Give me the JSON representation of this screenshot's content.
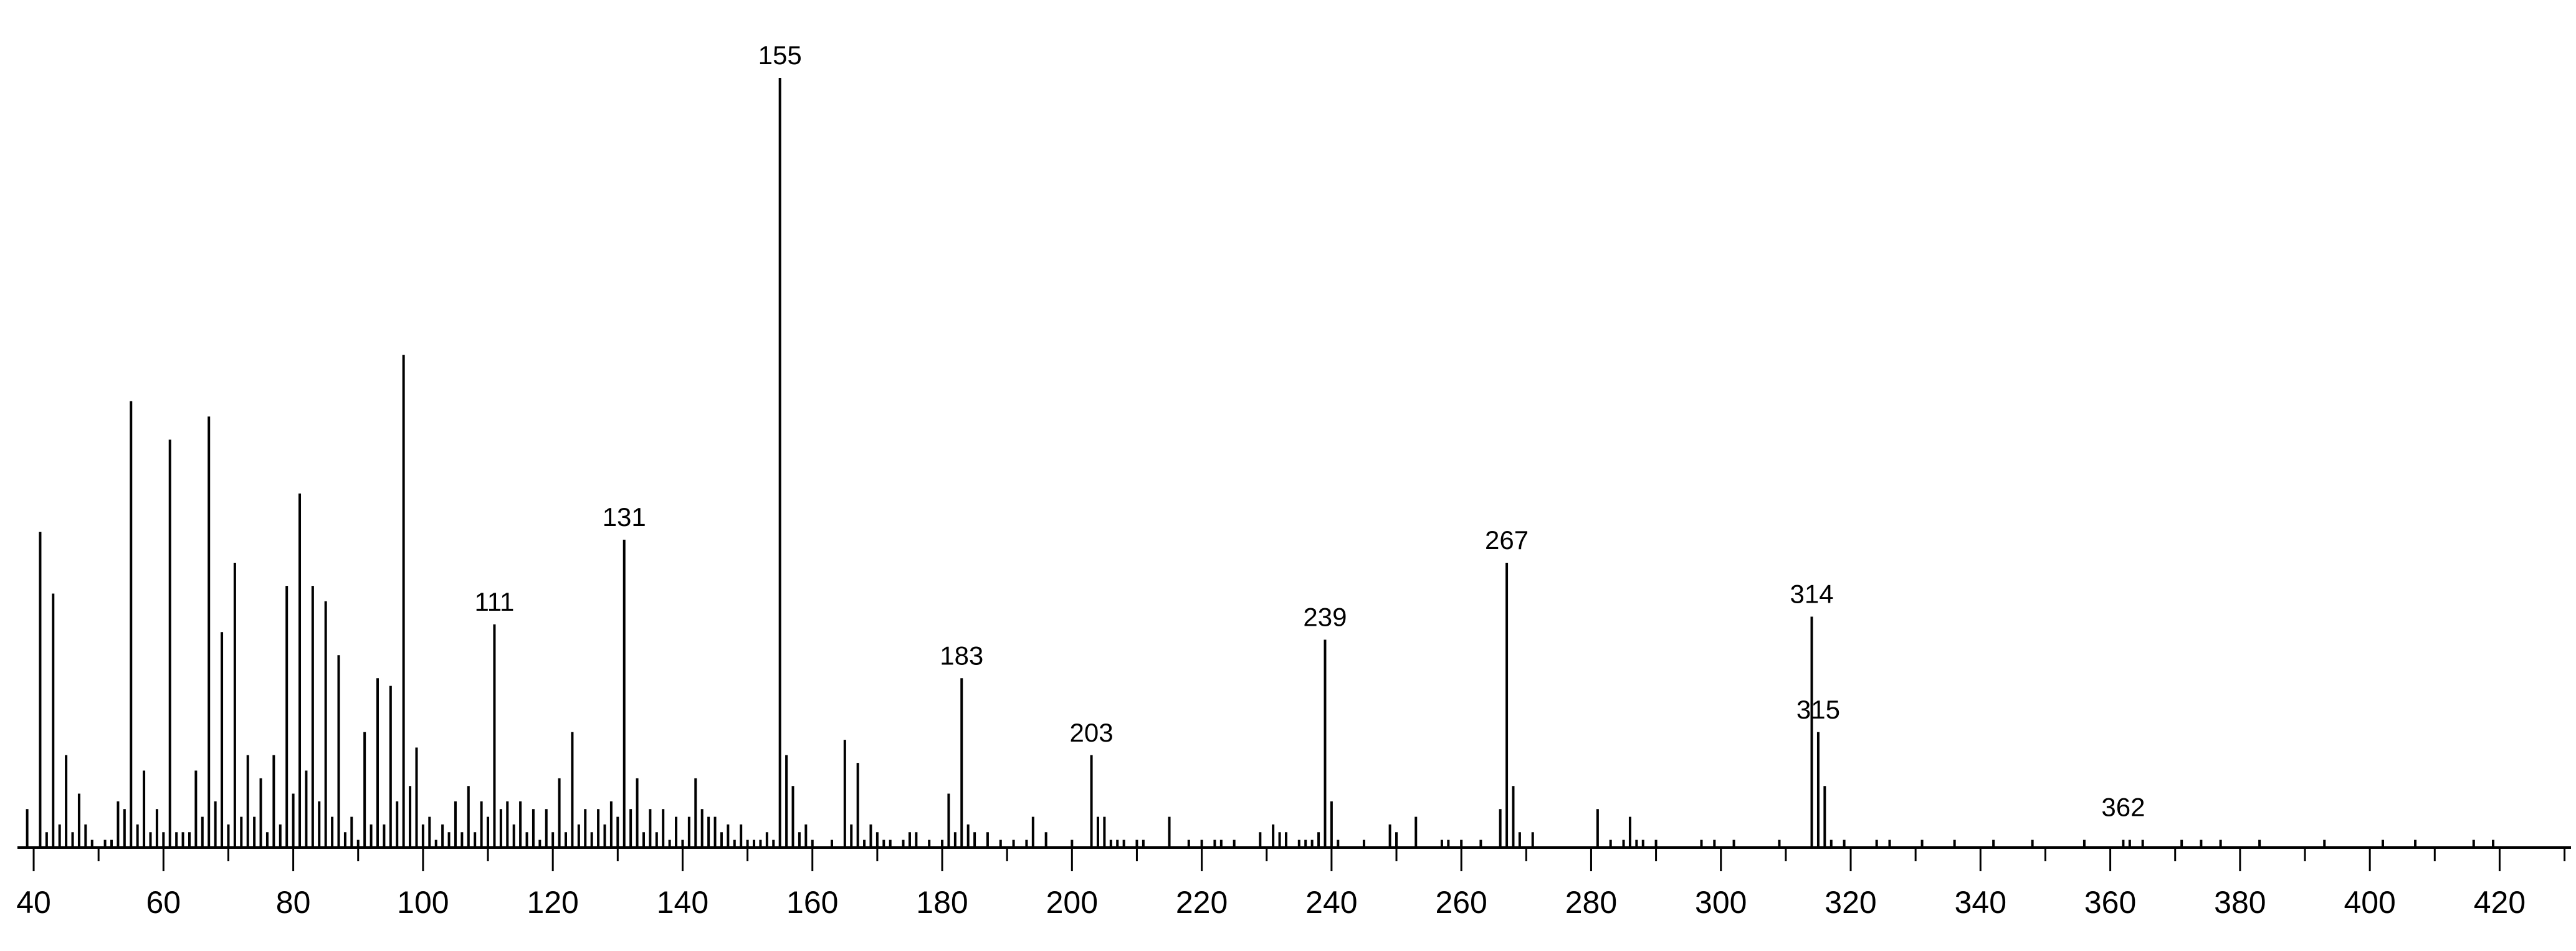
{
  "chart_data": {
    "type": "bar",
    "title": "",
    "xlabel": "",
    "ylabel": "",
    "xlim": [
      37.5,
      431
    ],
    "ylim": [
      0,
      100
    ],
    "grid": false,
    "legend": "none",
    "colors": {
      "bars": "#000000",
      "axis": "#000000",
      "background": "#ffffff"
    },
    "x_ticks": [
      40,
      60,
      80,
      100,
      120,
      140,
      160,
      180,
      200,
      220,
      240,
      260,
      280,
      300,
      320,
      340,
      360,
      380,
      400,
      420
    ],
    "x_tick_labels": [
      "40",
      "60",
      "80",
      "100",
      "120",
      "140",
      "160",
      "180",
      "200",
      "220",
      "240",
      "260",
      "280",
      "300",
      "320",
      "340",
      "360",
      "380",
      "400",
      "420"
    ],
    "annotations": [
      {
        "x": 111,
        "label": "111"
      },
      {
        "x": 131,
        "label": "131"
      },
      {
        "x": 155,
        "label": "155"
      },
      {
        "x": 183,
        "label": "183"
      },
      {
        "x": 203,
        "label": "203"
      },
      {
        "x": 239,
        "label": "239"
      },
      {
        "x": 267,
        "label": "267"
      },
      {
        "x": 314,
        "label": "314"
      },
      {
        "x": 315,
        "label": "315"
      },
      {
        "x": 362,
        "label": "362"
      }
    ],
    "peaks": [
      [
        39,
        5
      ],
      [
        41,
        41
      ],
      [
        42,
        2
      ],
      [
        43,
        33
      ],
      [
        44,
        3
      ],
      [
        45,
        12
      ],
      [
        46,
        2
      ],
      [
        47,
        7
      ],
      [
        48,
        3
      ],
      [
        49,
        1
      ],
      [
        51,
        1
      ],
      [
        52,
        1
      ],
      [
        53,
        6
      ],
      [
        54,
        5
      ],
      [
        55,
        58
      ],
      [
        56,
        3
      ],
      [
        57,
        10
      ],
      [
        58,
        2
      ],
      [
        59,
        5
      ],
      [
        60,
        2
      ],
      [
        61,
        53
      ],
      [
        62,
        2
      ],
      [
        63,
        2
      ],
      [
        64,
        2
      ],
      [
        65,
        10
      ],
      [
        66,
        4
      ],
      [
        67,
        56
      ],
      [
        68,
        6
      ],
      [
        69,
        28
      ],
      [
        70,
        3
      ],
      [
        71,
        37
      ],
      [
        72,
        4
      ],
      [
        73,
        12
      ],
      [
        74,
        4
      ],
      [
        75,
        9
      ],
      [
        76,
        2
      ],
      [
        77,
        12
      ],
      [
        78,
        3
      ],
      [
        79,
        34
      ],
      [
        80,
        7
      ],
      [
        81,
        46
      ],
      [
        82,
        10
      ],
      [
        83,
        34
      ],
      [
        84,
        6
      ],
      [
        85,
        32
      ],
      [
        86,
        4
      ],
      [
        87,
        25
      ],
      [
        88,
        2
      ],
      [
        89,
        4
      ],
      [
        90,
        1
      ],
      [
        91,
        15
      ],
      [
        92,
        3
      ],
      [
        93,
        22
      ],
      [
        94,
        3
      ],
      [
        95,
        21
      ],
      [
        96,
        6
      ],
      [
        97,
        64
      ],
      [
        98,
        8
      ],
      [
        99,
        13
      ],
      [
        100,
        3
      ],
      [
        101,
        4
      ],
      [
        102,
        1
      ],
      [
        103,
        3
      ],
      [
        104,
        2
      ],
      [
        105,
        6
      ],
      [
        106,
        2
      ],
      [
        107,
        8
      ],
      [
        108,
        2
      ],
      [
        109,
        6
      ],
      [
        110,
        4
      ],
      [
        111,
        29
      ],
      [
        112,
        5
      ],
      [
        113,
        6
      ],
      [
        114,
        3
      ],
      [
        115,
        6
      ],
      [
        116,
        2
      ],
      [
        117,
        5
      ],
      [
        118,
        1
      ],
      [
        119,
        5
      ],
      [
        120,
        2
      ],
      [
        121,
        9
      ],
      [
        122,
        2
      ],
      [
        123,
        15
      ],
      [
        124,
        3
      ],
      [
        125,
        5
      ],
      [
        126,
        2
      ],
      [
        127,
        5
      ],
      [
        128,
        3
      ],
      [
        129,
        6
      ],
      [
        130,
        4
      ],
      [
        131,
        40
      ],
      [
        132,
        5
      ],
      [
        133,
        9
      ],
      [
        134,
        2
      ],
      [
        135,
        5
      ],
      [
        136,
        2
      ],
      [
        137,
        5
      ],
      [
        138,
        1
      ],
      [
        139,
        4
      ],
      [
        140,
        1
      ],
      [
        141,
        4
      ],
      [
        142,
        9
      ],
      [
        143,
        5
      ],
      [
        144,
        4
      ],
      [
        145,
        4
      ],
      [
        146,
        2
      ],
      [
        147,
        3
      ],
      [
        148,
        1
      ],
      [
        149,
        3
      ],
      [
        150,
        1
      ],
      [
        151,
        1
      ],
      [
        152,
        1
      ],
      [
        153,
        2
      ],
      [
        154,
        1
      ],
      [
        155,
        100
      ],
      [
        156,
        12
      ],
      [
        157,
        8
      ],
      [
        158,
        2
      ],
      [
        159,
        3
      ],
      [
        160,
        1
      ],
      [
        163,
        1
      ],
      [
        165,
        14
      ],
      [
        166,
        3
      ],
      [
        167,
        11
      ],
      [
        168,
        1
      ],
      [
        169,
        3
      ],
      [
        170,
        2
      ],
      [
        171,
        1
      ],
      [
        172,
        1
      ],
      [
        174,
        1
      ],
      [
        175,
        2
      ],
      [
        176,
        2
      ],
      [
        178,
        1
      ],
      [
        180,
        1
      ],
      [
        181,
        7
      ],
      [
        182,
        2
      ],
      [
        183,
        22
      ],
      [
        184,
        3
      ],
      [
        185,
        2
      ],
      [
        187,
        2
      ],
      [
        189,
        1
      ],
      [
        191,
        1
      ],
      [
        193,
        1
      ],
      [
        194,
        4
      ],
      [
        196,
        2
      ],
      [
        200,
        1
      ],
      [
        203,
        12
      ],
      [
        204,
        4
      ],
      [
        205,
        4
      ],
      [
        206,
        1
      ],
      [
        207,
        1
      ],
      [
        208,
        1
      ],
      [
        210,
        1
      ],
      [
        211,
        1
      ],
      [
        215,
        4
      ],
      [
        218,
        1
      ],
      [
        220,
        1
      ],
      [
        222,
        1
      ],
      [
        223,
        1
      ],
      [
        225,
        1
      ],
      [
        229,
        2
      ],
      [
        231,
        3
      ],
      [
        232,
        2
      ],
      [
        233,
        2
      ],
      [
        235,
        1
      ],
      [
        236,
        1
      ],
      [
        237,
        1
      ],
      [
        238,
        2
      ],
      [
        239,
        27
      ],
      [
        240,
        6
      ],
      [
        241,
        1
      ],
      [
        245,
        1
      ],
      [
        249,
        3
      ],
      [
        250,
        2
      ],
      [
        253,
        4
      ],
      [
        257,
        1
      ],
      [
        258,
        1
      ],
      [
        260,
        1
      ],
      [
        263,
        1
      ],
      [
        266,
        5
      ],
      [
        267,
        37
      ],
      [
        268,
        8
      ],
      [
        269,
        2
      ],
      [
        271,
        2
      ],
      [
        281,
        5
      ],
      [
        283,
        1
      ],
      [
        285,
        1
      ],
      [
        286,
        4
      ],
      [
        287,
        1
      ],
      [
        288,
        1
      ],
      [
        290,
        1
      ],
      [
        297,
        1
      ],
      [
        299,
        1
      ],
      [
        302,
        1
      ],
      [
        309,
        1
      ],
      [
        314,
        30
      ],
      [
        315,
        15
      ],
      [
        316,
        8
      ],
      [
        317,
        1
      ],
      [
        319,
        1
      ],
      [
        324,
        1
      ],
      [
        326,
        1
      ],
      [
        331,
        1
      ],
      [
        336,
        1
      ],
      [
        342,
        1
      ],
      [
        348,
        1
      ],
      [
        356,
        1
      ],
      [
        362,
        1
      ],
      [
        363,
        1
      ],
      [
        365,
        1
      ],
      [
        371,
        1
      ],
      [
        374,
        1
      ],
      [
        377,
        1
      ],
      [
        383,
        1
      ],
      [
        393,
        1
      ],
      [
        402,
        1
      ],
      [
        407,
        1
      ],
      [
        416,
        1
      ],
      [
        419,
        1
      ]
    ]
  }
}
